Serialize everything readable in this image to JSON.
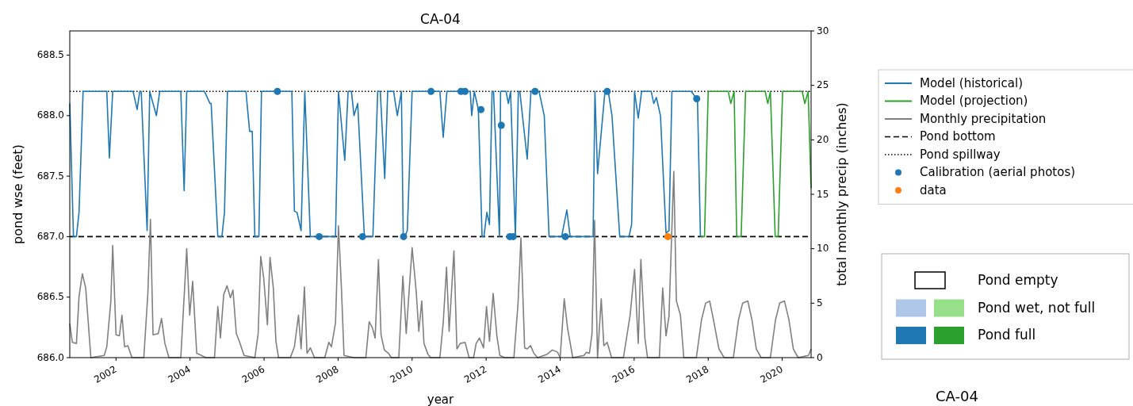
{
  "chart_data": [
    {
      "type": "line",
      "title": "CA-04",
      "xlabel": "year",
      "ylabel": "pond wse (feet)",
      "y2label": "total monthly precip (inches)",
      "xlim": [
        2000.75,
        2020.78
      ],
      "xticks": [
        2002,
        2004,
        2006,
        2008,
        2010,
        2012,
        2014,
        2016,
        2018,
        2020
      ],
      "ylim": [
        686,
        688.7
      ],
      "yticks": [
        {
          "value": 686,
          "label": "686.0"
        },
        {
          "value": 686.5,
          "label": "686.5"
        },
        {
          "value": 687,
          "label": "687.0"
        },
        {
          "value": 687.5,
          "label": "687.5"
        },
        {
          "value": 688,
          "label": "688.0"
        },
        {
          "value": 688.5,
          "label": "688.5"
        }
      ],
      "y2lim": [
        0,
        30
      ],
      "y2ticks": [
        0,
        5,
        10,
        15,
        20,
        25,
        30
      ],
      "legend": "right",
      "line_style": "solid",
      "series": [
        {
          "name": "Model (historical)",
          "type": "line",
          "color": "#1f77b4",
          "x": [
            2000.75,
            2000.85,
            2000.93,
            2001.0,
            2001.11,
            2001.75,
            2001.82,
            2001.91,
            2002.46,
            2002.57,
            2002.64,
            2002.68,
            2002.84,
            2002.91,
            2003.09,
            2003.18,
            2003.75,
            2003.84,
            2003.91,
            2004.39,
            2004.54,
            2004.57,
            2004.75,
            2004.86,
            2004.93,
            2005.01,
            2005.51,
            2005.61,
            2005.68,
            2005.75,
            2005.86,
            2005.93,
            2006.75,
            2006.82,
            2006.89,
            2007.0,
            2007.1,
            2007.25,
            2007.93,
            2008.01,
            2008.18,
            2008.27,
            2008.36,
            2008.43,
            2008.53,
            2008.71,
            2008.94,
            2009.07,
            2009.14,
            2009.26,
            2009.34,
            2009.5,
            2009.6,
            2009.71,
            2009.76,
            2009.8,
            2009.87,
            2010.0,
            2010.75,
            2010.84,
            2010.94,
            2011.57,
            2011.61,
            2011.68,
            2011.79,
            2011.89,
            2011.94,
            2012.02,
            2012.09,
            2012.16,
            2012.2,
            2012.36,
            2012.39,
            2012.54,
            2012.6,
            2012.66,
            2012.79,
            2012.87,
            2012.91,
            2013.11,
            2013.21,
            2013.43,
            2013.57,
            2013.7,
            2014.04,
            2014.18,
            2014.27,
            2014.89,
            2014.94,
            2015.01,
            2015.21,
            2015.3,
            2015.4,
            2015.61,
            2015.86,
            2015.93,
            2016.01,
            2016.11,
            2016.2,
            2016.46,
            2016.53,
            2016.6,
            2016.71,
            2016.86,
            2016.94,
            2017.02,
            2017.54,
            2017.69,
            2017.71,
            2017.79
          ],
          "values": [
            688.1,
            687.0,
            687.0,
            687.2,
            688.2,
            688.2,
            687.65,
            688.2,
            688.2,
            688.05,
            688.2,
            688.2,
            687.05,
            688.2,
            688.0,
            688.2,
            688.2,
            687.38,
            688.2,
            688.2,
            688.1,
            688.1,
            687.0,
            687.0,
            687.2,
            688.2,
            688.2,
            687.87,
            687.87,
            687.0,
            687.0,
            688.2,
            688.2,
            687.21,
            687.2,
            687.05,
            688.2,
            687.0,
            687.0,
            688.2,
            687.63,
            688.2,
            688.2,
            688.0,
            688.1,
            687.0,
            687.0,
            688.2,
            688.2,
            687.48,
            688.2,
            688.2,
            688.0,
            688.2,
            687.0,
            687.0,
            687.05,
            688.2,
            688.2,
            687.82,
            688.2,
            688.2,
            688.0,
            688.2,
            688.05,
            687.0,
            687.0,
            687.2,
            687.1,
            688.2,
            688.2,
            687.0,
            688.2,
            688.2,
            688.1,
            688.2,
            687.0,
            688.2,
            688.2,
            687.64,
            688.2,
            688.2,
            688.0,
            687.0,
            687.0,
            687.22,
            687.0,
            687.0,
            688.2,
            687.52,
            688.2,
            688.2,
            688.0,
            687.0,
            687.0,
            687.1,
            688.2,
            687.98,
            688.2,
            688.2,
            688.1,
            688.15,
            688.0,
            687.03,
            687.05,
            688.2,
            688.2,
            688.14,
            688.14,
            687.0
          ]
        },
        {
          "name": "Model (projection)",
          "type": "line",
          "color": "#2ca02c",
          "x": [
            2017.79,
            2017.9,
            2018.0,
            2018.54,
            2018.61,
            2018.7,
            2018.77,
            2018.89,
            2019.01,
            2019.54,
            2019.61,
            2019.68,
            2019.81,
            2019.89,
            2020.01,
            2020.54,
            2020.61,
            2020.7,
            2020.78
          ],
          "values": [
            687.0,
            687.0,
            688.2,
            688.2,
            688.1,
            688.2,
            687.0,
            687.0,
            688.2,
            688.2,
            688.1,
            688.2,
            687.0,
            687.0,
            688.2,
            688.2,
            688.1,
            688.2,
            687.4
          ]
        },
        {
          "name": "Monthly precipitation",
          "type": "line",
          "axis": "y2",
          "color": "#808080",
          "x": [
            2000.75,
            2000.82,
            2000.93,
            2001.0,
            2001.09,
            2001.18,
            2001.32,
            2001.68,
            2001.75,
            2001.86,
            2001.91,
            2002.0,
            2002.09,
            2002.16,
            2002.23,
            2002.32,
            2002.43,
            2002.75,
            2002.86,
            2002.93,
            2003.0,
            2003.14,
            2003.23,
            2003.32,
            2003.43,
            2003.75,
            2003.84,
            2003.91,
            2003.99,
            2004.07,
            2004.18,
            2004.43,
            2004.66,
            2004.75,
            2004.82,
            2004.91,
            2005.0,
            2005.09,
            2005.16,
            2005.25,
            2005.32,
            2005.46,
            2005.75,
            2005.84,
            2005.91,
            2005.99,
            2006.09,
            2006.16,
            2006.25,
            2006.32,
            2006.39,
            2006.71,
            2006.82,
            2006.93,
            2007.0,
            2007.09,
            2007.16,
            2007.25,
            2007.36,
            2007.64,
            2007.75,
            2007.82,
            2007.93,
            2008.01,
            2008.09,
            2008.16,
            2008.43,
            2008.75,
            2008.84,
            2008.93,
            2009.0,
            2009.09,
            2009.16,
            2009.25,
            2009.36,
            2009.44,
            2009.64,
            2009.75,
            2009.84,
            2010.0,
            2010.11,
            2010.18,
            2010.26,
            2010.32,
            2010.43,
            2010.5,
            2010.75,
            2010.84,
            2010.93,
            2011.0,
            2011.13,
            2011.21,
            2011.3,
            2011.43,
            2011.54,
            2011.66,
            2011.73,
            2011.82,
            2011.93,
            2012.01,
            2012.09,
            2012.19,
            2012.29,
            2012.37,
            2012.5,
            2012.75,
            2012.86,
            2012.94,
            2013.04,
            2013.11,
            2013.2,
            2013.29,
            2013.39,
            2013.64,
            2013.79,
            2013.93,
            2014.0,
            2014.11,
            2014.2,
            2014.34,
            2014.64,
            2014.71,
            2014.79,
            2014.86,
            2014.93,
            2015.01,
            2015.11,
            2015.18,
            2015.27,
            2015.39,
            2015.71,
            2015.89,
            2016.01,
            2016.11,
            2016.18,
            2016.29,
            2016.36,
            2016.68,
            2016.77,
            2016.86,
            2016.94,
            2017.07,
            2017.14,
            2017.25,
            2017.34,
            2017.68,
            2017.82,
            2017.93,
            2018.04,
            2018.14,
            2018.29,
            2018.43,
            2018.68,
            2018.82,
            2018.93,
            2019.07,
            2019.18,
            2019.3,
            2019.43,
            2019.68,
            2019.82,
            2019.93,
            2020.06,
            2020.18,
            2020.3,
            2020.43,
            2020.71,
            2020.78
          ],
          "values": [
            3.1,
            1.4,
            1.3,
            5.6,
            7.7,
            6.4,
            0,
            0.2,
            1.0,
            5.2,
            10.3,
            2.1,
            2.0,
            3.9,
            1.0,
            1.1,
            0,
            0,
            5.9,
            12.7,
            2.1,
            2.2,
            3.6,
            1.3,
            0,
            0,
            5.6,
            10.0,
            3.9,
            7.0,
            0.4,
            0,
            0,
            4.7,
            1.8,
            5.8,
            6.6,
            5.5,
            6.2,
            2.2,
            1.6,
            0.2,
            0,
            2.2,
            9.3,
            7.3,
            3.0,
            9.2,
            6.4,
            1.5,
            0,
            0,
            1.0,
            3.9,
            0.8,
            6.5,
            0.4,
            0.9,
            0,
            0,
            1.4,
            1.0,
            3.2,
            12.1,
            6.4,
            0.2,
            0,
            0,
            3.3,
            2.7,
            1.8,
            9.0,
            2.1,
            0.7,
            0.4,
            0,
            0,
            7.5,
            2.2,
            10.1,
            6.1,
            2.4,
            5.2,
            1.3,
            0.3,
            0,
            0,
            3.2,
            8.3,
            2.4,
            9.8,
            0.8,
            1.3,
            1.4,
            0,
            0,
            1.3,
            1.8,
            0.9,
            4.7,
            1.5,
            5.9,
            2.0,
            0.2,
            0,
            0,
            4.9,
            11.0,
            0.9,
            0.8,
            1.1,
            0.4,
            0,
            0.3,
            0.7,
            0.5,
            0,
            5.4,
            2.7,
            0,
            0.2,
            0.5,
            0.4,
            2.2,
            12.6,
            0,
            5.4,
            1.1,
            1.4,
            0,
            0,
            3.9,
            8.1,
            1.3,
            9.0,
            1.8,
            0,
            0,
            6.4,
            2.0,
            3.8,
            17.1,
            5.2,
            3.9,
            0,
            0,
            3.5,
            5.0,
            5.2,
            3.5,
            0.8,
            0,
            0,
            3.5,
            5.0,
            5.2,
            3.5,
            0.8,
            0,
            0,
            3.5,
            5.0,
            5.2,
            3.5,
            0.8,
            0,
            0.2,
            0.8
          ]
        },
        {
          "name": "Calibration (aerial photos)",
          "type": "scatter",
          "marker": "circle",
          "color": "#1f77b4",
          "x": [
            2006.36,
            2007.49,
            2008.66,
            2009.77,
            2010.51,
            2011.32,
            2011.43,
            2011.86,
            2012.41,
            2012.64,
            2012.73,
            2013.32,
            2014.14,
            2015.27,
            2017.69
          ],
          "values": [
            688.2,
            687.0,
            687.0,
            687.0,
            688.2,
            688.2,
            688.2,
            688.05,
            687.92,
            687.0,
            687.0,
            688.2,
            687.0,
            688.2,
            688.14
          ]
        },
        {
          "name": "data",
          "type": "scatter",
          "marker": "circle",
          "color": "#ff7f0e",
          "x": [
            2016.91
          ],
          "values": [
            687.0
          ]
        }
      ],
      "ref_lines": [
        {
          "axis": "y",
          "value": 687.0,
          "label": "Pond bottom",
          "color": "#000000",
          "line_style": "dashed"
        },
        {
          "axis": "y",
          "value": 688.2,
          "label": "Pond spillway",
          "color": "#000000",
          "line_style": "dotted"
        }
      ]
    },
    {
      "type": "other",
      "title": "CA-04",
      "annotations": [
        "Pond empty",
        "Pond wet, not full",
        "Pond full"
      ]
    }
  ]
}
